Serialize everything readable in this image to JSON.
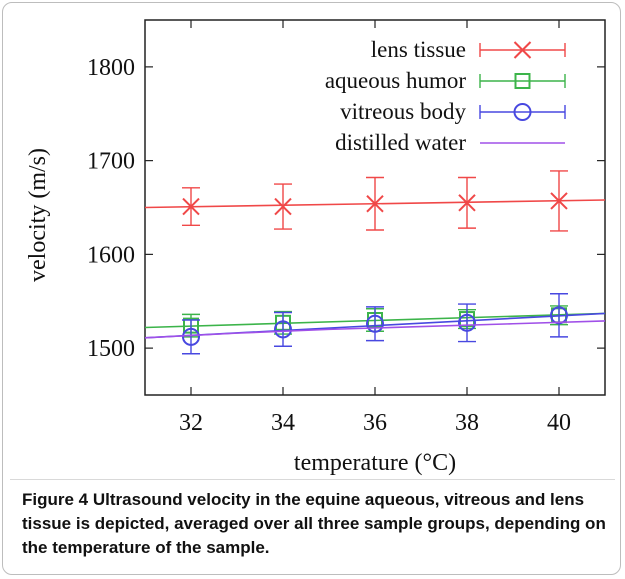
{
  "figure": {
    "label": "Figure 4",
    "caption": "Ultrasound velocity in the equine aqueous, vitreous and lens tissue is depicted, averaged over all three sample groups, depending on the temperature of the sample."
  },
  "chart_data": {
    "type": "line",
    "title": "",
    "xlabel": "temperature (°C)",
    "ylabel": "velocity (m/s)",
    "xlim": [
      31,
      41
    ],
    "ylim": [
      1450,
      1850
    ],
    "xticks": [
      32,
      34,
      36,
      38,
      40
    ],
    "yticks": [
      1500,
      1600,
      1700,
      1800
    ],
    "legend_position": "top-right",
    "grid": false,
    "series": [
      {
        "name": "lens tissue",
        "color": "#f04848",
        "marker": "x",
        "x": [
          32,
          34,
          36,
          38,
          40
        ],
        "y": [
          1651,
          1651,
          1654,
          1655,
          1657
        ],
        "err": [
          20,
          24,
          28,
          27,
          32
        ],
        "fit": [
          [
            31,
            1650
          ],
          [
            41,
            1658
          ]
        ]
      },
      {
        "name": "aqueous humor",
        "color": "#3cb44a",
        "marker": "square",
        "x": [
          32,
          34,
          36,
          38,
          40
        ],
        "y": [
          1524,
          1527,
          1530,
          1531,
          1535
        ],
        "err": [
          12,
          12,
          12,
          10,
          10
        ],
        "fit": [
          [
            31,
            1522
          ],
          [
            41,
            1537
          ]
        ]
      },
      {
        "name": "vitreous body",
        "color": "#4848e0",
        "marker": "circle",
        "x": [
          32,
          34,
          36,
          38,
          40
        ],
        "y": [
          1512,
          1520,
          1526,
          1527,
          1535
        ],
        "err": [
          18,
          18,
          18,
          20,
          23
        ],
        "fit": [
          [
            31,
            1511
          ],
          [
            41,
            1537
          ]
        ]
      },
      {
        "name": "distilled water",
        "color": "#a050e8",
        "marker": "none",
        "x": [
          31,
          33,
          35,
          37,
          39,
          41
        ],
        "y": [
          1511,
          1516,
          1520,
          1523,
          1526,
          1529
        ],
        "err": []
      }
    ]
  }
}
